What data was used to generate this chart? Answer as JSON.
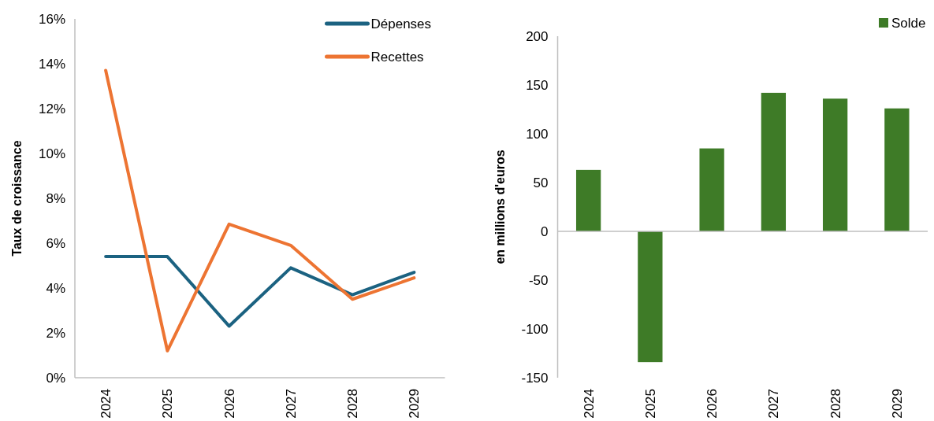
{
  "chart_data": [
    {
      "type": "line",
      "ylabel": "Taux de croissance",
      "categories": [
        "2024",
        "2025",
        "2026",
        "2027",
        "2028",
        "2029"
      ],
      "series": [
        {
          "name": "Dépenses",
          "color": "#1b6281",
          "values": [
            5.4,
            5.4,
            2.3,
            4.9,
            3.7,
            4.7
          ]
        },
        {
          "name": "Recettes",
          "color": "#ed7432",
          "values": [
            13.7,
            1.2,
            6.85,
            5.9,
            3.5,
            4.45
          ]
        }
      ],
      "ylim": [
        0,
        16
      ],
      "yticks": [
        {
          "value": 0,
          "label": "0%"
        },
        {
          "value": 2,
          "label": "2%"
        },
        {
          "value": 4,
          "label": "4%"
        },
        {
          "value": 6,
          "label": "6%"
        },
        {
          "value": 8,
          "label": "8%"
        },
        {
          "value": 10,
          "label": "10%"
        },
        {
          "value": 12,
          "label": "12%"
        },
        {
          "value": 14,
          "label": "14%"
        },
        {
          "value": 16,
          "label": "16%"
        }
      ],
      "grid": false,
      "legend": "top right",
      "marker": "none",
      "line_style": "solid"
    },
    {
      "type": "bar",
      "ylabel": "en millions d'euros",
      "categories": [
        "2024",
        "2025",
        "2026",
        "2027",
        "2028",
        "2029"
      ],
      "series": [
        {
          "name": "Solde",
          "color": "#3e7b27",
          "values": [
            63,
            -134,
            85,
            142,
            136,
            126
          ]
        }
      ],
      "ylim": [
        -150,
        200
      ],
      "yticks": [
        -150,
        -100,
        -50,
        0,
        50,
        100,
        150,
        200
      ],
      "grid": false,
      "legend": "top right",
      "ref_lines": [
        {
          "axis": "y",
          "value": 0,
          "color": "#bfbfbf"
        }
      ]
    }
  ]
}
